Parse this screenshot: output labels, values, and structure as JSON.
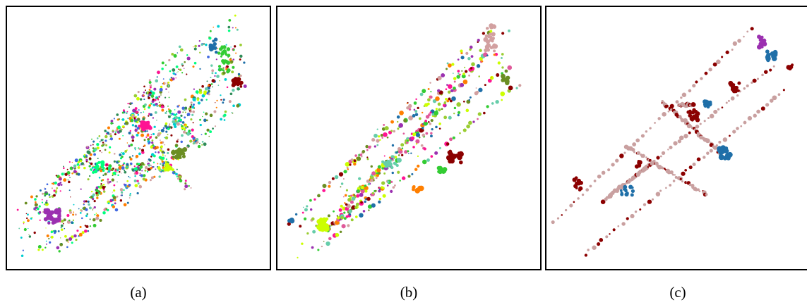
{
  "figure": {
    "panels": [
      {
        "caption": "(a)"
      },
      {
        "caption": "(b)"
      },
      {
        "caption": "(c)"
      }
    ]
  },
  "colors": {
    "a": [
      "#1f6fa8",
      "#33cc33",
      "#ff1493",
      "#8b0000",
      "#9b30b0",
      "#66cdaa",
      "#9acd32",
      "#ff7f00",
      "#6b8e23",
      "#d2a0a0",
      "#00ced1",
      "#ccff00",
      "#00ff7f",
      "#4169e1",
      "#2e8b57"
    ],
    "b": [
      "#1f6fa8",
      "#33cc33",
      "#ff1493",
      "#8b0000",
      "#9b30b0",
      "#66cdaa",
      "#9acd32",
      "#ff7f00",
      "#6b8e23",
      "#d2a0a0",
      "#ccff00",
      "#e05a9a"
    ],
    "c": [
      "#c9a0a0",
      "#8b0000",
      "#1f6fa8",
      "#9b30b0"
    ]
  }
}
